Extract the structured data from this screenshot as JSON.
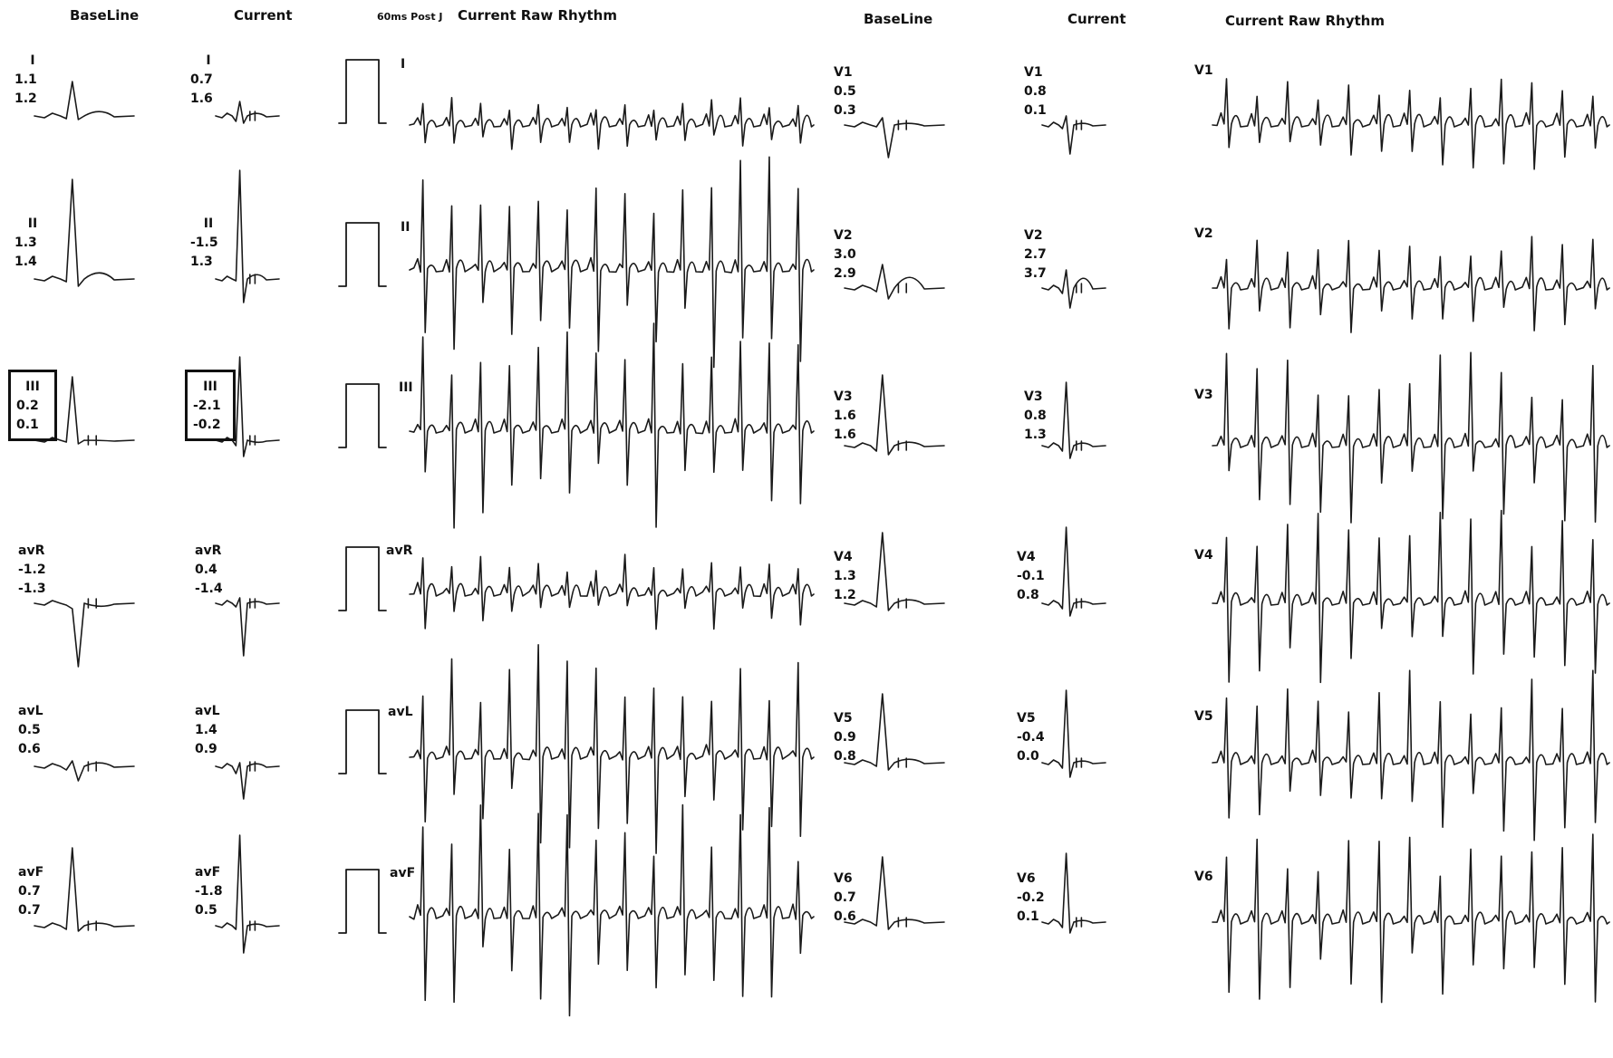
{
  "headers": {
    "baseline_left": "BaseLine",
    "current_left": "Current",
    "post_j": "60ms Post J",
    "raw_left": "Current Raw Rhythm",
    "baseline_right": "BaseLine",
    "current_right": "Current",
    "raw_right": "Current Raw Rhythm"
  },
  "limb_leads": [
    {
      "name": "I",
      "baseline": [
        "1.1",
        "1.2"
      ],
      "current": [
        "0.7",
        "1.6"
      ],
      "highlighted": false
    },
    {
      "name": "II",
      "baseline": [
        "1.3",
        "1.4"
      ],
      "current": [
        "-1.5",
        "1.3"
      ],
      "highlighted": false
    },
    {
      "name": "III",
      "baseline": [
        "0.2",
        "0.1"
      ],
      "current": [
        "-2.1",
        "-0.2"
      ],
      "highlighted": true
    },
    {
      "name": "avR",
      "baseline": [
        "-1.2",
        "-1.3"
      ],
      "current": [
        "0.4",
        "-1.4"
      ],
      "highlighted": false
    },
    {
      "name": "avL",
      "baseline": [
        "0.5",
        "0.6"
      ],
      "current": [
        "1.4",
        "0.9"
      ],
      "highlighted": false
    },
    {
      "name": "avF",
      "baseline": [
        "0.7",
        "0.7"
      ],
      "current": [
        "-1.8",
        "0.5"
      ],
      "highlighted": false
    }
  ],
  "precordial_leads": [
    {
      "name": "V1",
      "baseline": [
        "0.5",
        "0.3"
      ],
      "current": [
        "0.8",
        "0.1"
      ]
    },
    {
      "name": "V2",
      "baseline": [
        "3.0",
        "2.9"
      ],
      "current": [
        "2.7",
        "3.7"
      ]
    },
    {
      "name": "V3",
      "baseline": [
        "1.6",
        "1.6"
      ],
      "current": [
        "0.8",
        "1.3"
      ]
    },
    {
      "name": "V4",
      "baseline": [
        "1.3",
        "1.2"
      ],
      "current": [
        "-0.1",
        "0.8"
      ]
    },
    {
      "name": "V5",
      "baseline": [
        "0.9",
        "0.8"
      ],
      "current": [
        "-0.4",
        "0.0"
      ]
    },
    {
      "name": "V6",
      "baseline": [
        "0.7",
        "0.6"
      ],
      "current": [
        "-0.2",
        "0.1"
      ]
    }
  ],
  "colors": {
    "trace": "#1a1a1a",
    "background": "#ffffff"
  }
}
